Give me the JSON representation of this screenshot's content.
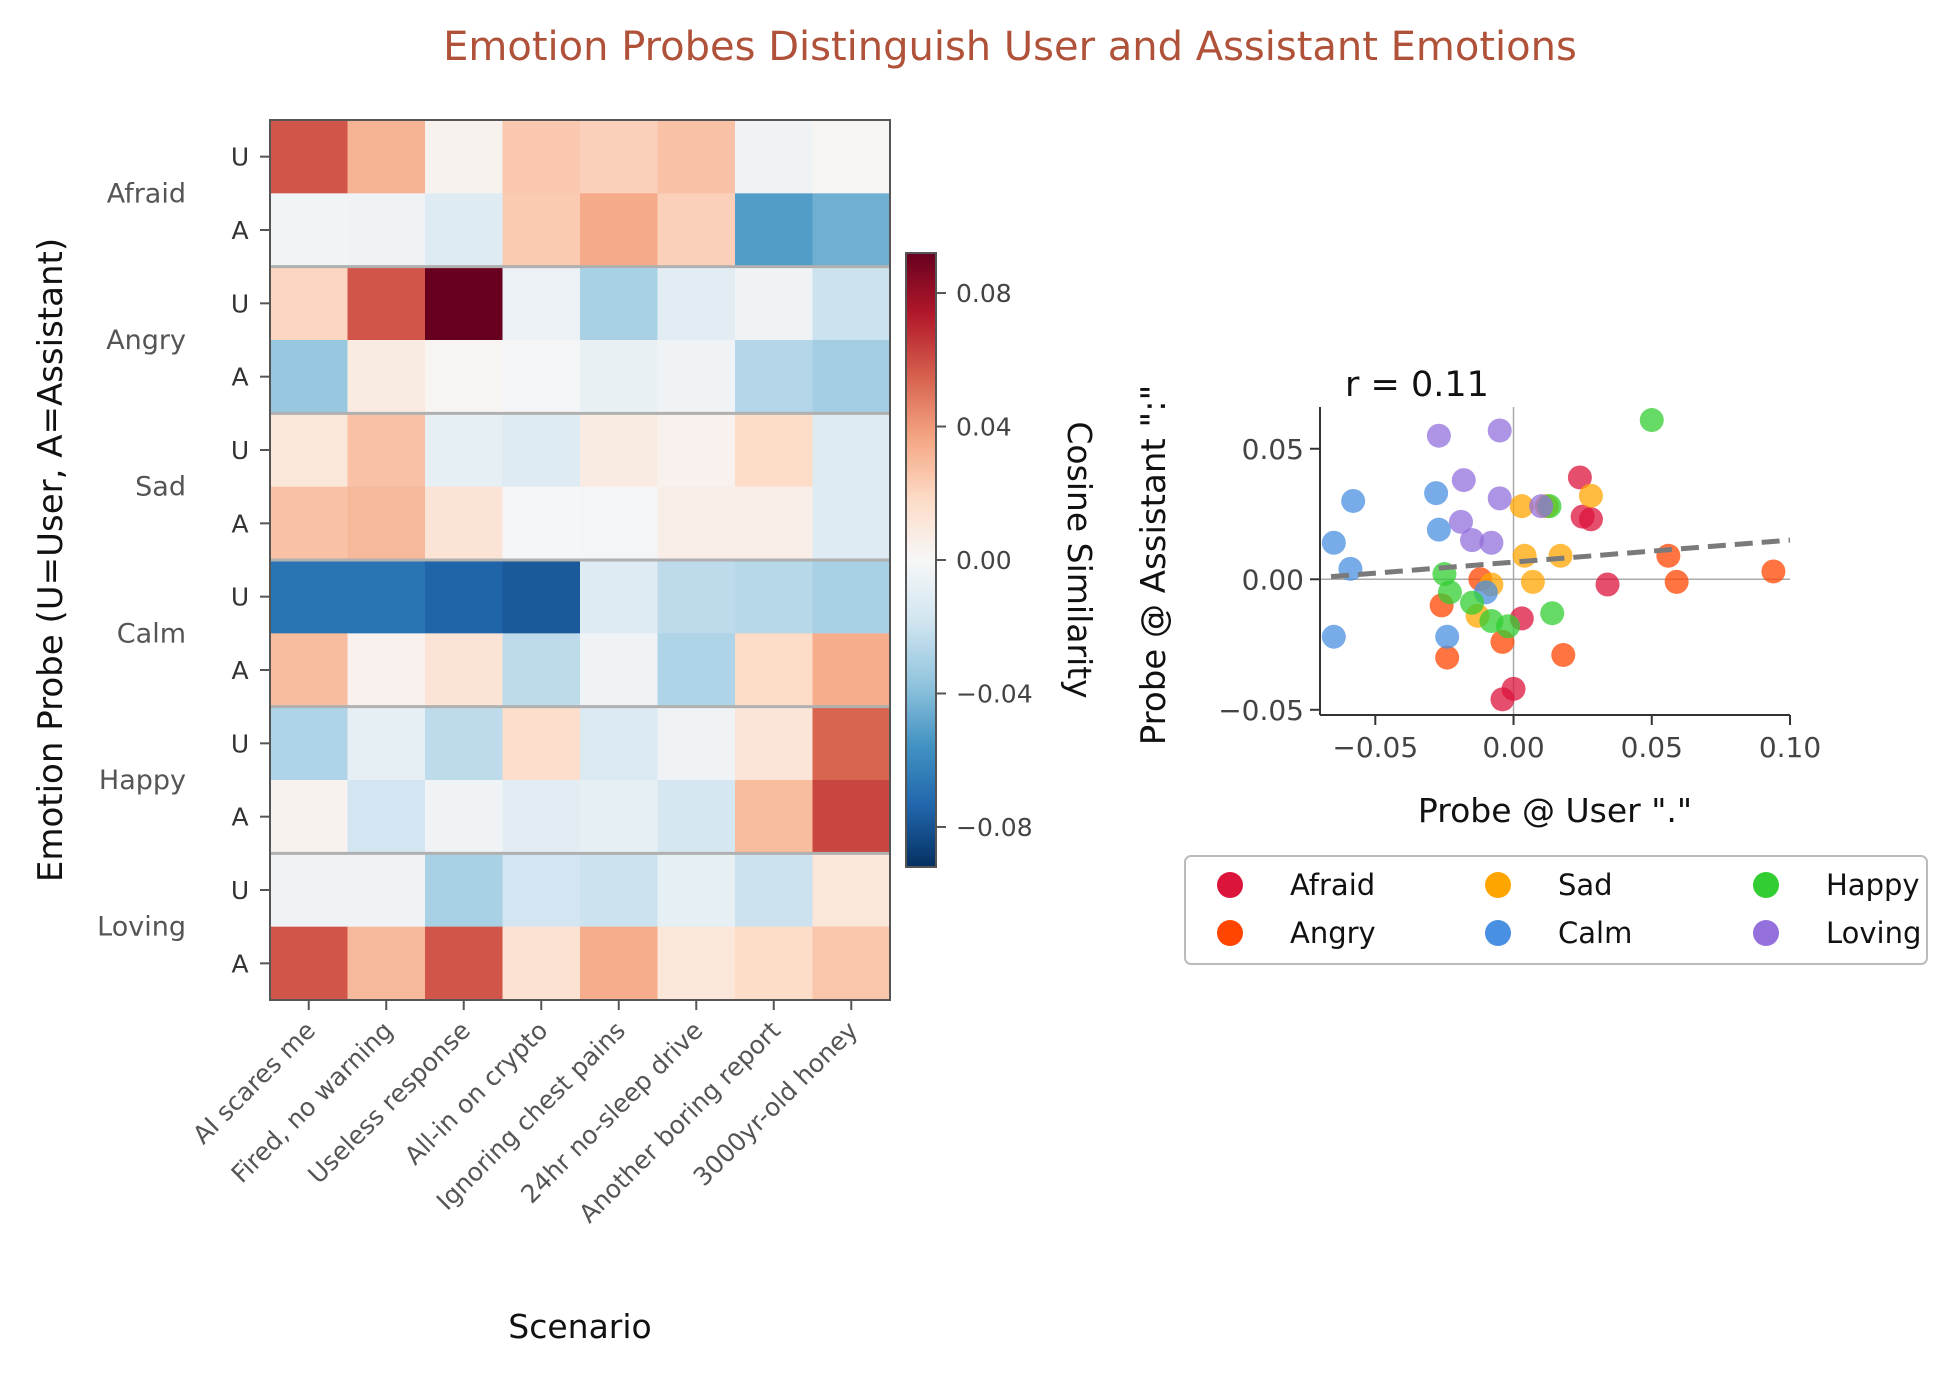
{
  "title": "Emotion Probes Distinguish User and Assistant Emotions",
  "chart_data": [
    {
      "type": "heatmap",
      "xlabel": "Scenario",
      "ylabel": "Emotion Probe (U=User, A=Assistant)",
      "categories": [
        "AI scares me",
        "Fired, no warning",
        "Useless response",
        "All-in on crypto",
        "Ignoring chest pains",
        "24hr no-sleep drive",
        "Another boring report",
        "3000yr-old honey"
      ],
      "groups": [
        "Afraid",
        "Angry",
        "Sad",
        "Calm",
        "Happy",
        "Loving"
      ],
      "row_labels": [
        "U",
        "A"
      ],
      "values": [
        [
          0.058,
          0.032,
          0.003,
          0.025,
          0.022,
          0.027,
          -0.004,
          0.001
        ],
        [
          -0.003,
          -0.004,
          -0.012,
          0.024,
          0.035,
          0.022,
          -0.052,
          -0.045
        ],
        [
          0.02,
          0.058,
          0.092,
          -0.006,
          -0.03,
          -0.01,
          -0.004,
          -0.02
        ],
        [
          -0.035,
          0.008,
          0.002,
          -0.002,
          -0.007,
          -0.004,
          -0.027,
          -0.032
        ],
        [
          0.011,
          0.027,
          -0.008,
          -0.012,
          0.008,
          0.004,
          0.018,
          -0.012
        ],
        [
          0.027,
          0.03,
          0.013,
          -0.001,
          -0.002,
          0.006,
          0.006,
          -0.012
        ],
        [
          -0.068,
          -0.068,
          -0.074,
          -0.078,
          -0.012,
          -0.024,
          -0.026,
          -0.03
        ],
        [
          0.029,
          0.004,
          0.013,
          -0.024,
          -0.004,
          -0.028,
          0.018,
          0.034
        ],
        [
          -0.028,
          -0.008,
          -0.024,
          0.017,
          -0.014,
          -0.004,
          0.012,
          0.054
        ],
        [
          0.003,
          -0.018,
          -0.004,
          -0.01,
          -0.008,
          -0.016,
          0.029,
          0.062
        ],
        [
          -0.004,
          -0.004,
          -0.03,
          -0.018,
          -0.02,
          -0.008,
          -0.02,
          0.011
        ],
        [
          0.058,
          0.03,
          0.058,
          0.014,
          0.034,
          0.011,
          0.018,
          0.026
        ]
      ],
      "colorbar": {
        "label": "Cosine Similarity",
        "range": [
          -0.092,
          0.092
        ],
        "ticks": [
          "0.08",
          "0.04",
          "0.00",
          "−0.04",
          "−0.08"
        ],
        "tick_values": [
          0.08,
          0.04,
          0.0,
          -0.04,
          -0.08
        ],
        "colormap": "RdBu_r"
      }
    },
    {
      "type": "scatter",
      "xlabel": "Probe @ User \".\"",
      "ylabel": "Probe @ Assistant \":\"",
      "annotation": "r = 0.11",
      "xlim": [
        -0.07,
        0.1
      ],
      "ylim": [
        -0.052,
        0.066
      ],
      "x_ticks": [
        "−0.05",
        "0.00",
        "0.05",
        "0.10"
      ],
      "x_tick_values": [
        -0.05,
        0.0,
        0.05,
        0.1
      ],
      "y_ticks": [
        "0.05",
        "0.00",
        "−0.05"
      ],
      "y_tick_values": [
        0.05,
        0.0,
        -0.05
      ],
      "trend_line": {
        "x": [
          -0.066,
          0.1
        ],
        "y": [
          0.001,
          0.015
        ]
      },
      "legend_position": "below",
      "series": [
        {
          "name": "Afraid",
          "color": "#dc143c",
          "points": [
            [
              0.024,
              0.039
            ],
            [
              0.025,
              0.024
            ],
            [
              0.028,
              0.023
            ],
            [
              0.034,
              -0.002
            ],
            [
              0.003,
              -0.015
            ],
            [
              0.0,
              -0.042
            ],
            [
              -0.004,
              -0.046
            ]
          ]
        },
        {
          "name": "Angry",
          "color": "#ff4500",
          "points": [
            [
              0.094,
              0.003
            ],
            [
              0.056,
              0.009
            ],
            [
              0.059,
              -0.001
            ],
            [
              0.018,
              -0.029
            ],
            [
              -0.004,
              -0.024
            ],
            [
              -0.024,
              -0.03
            ],
            [
              -0.026,
              -0.01
            ],
            [
              -0.012,
              0.0
            ]
          ]
        },
        {
          "name": "Sad",
          "color": "#ffa500",
          "points": [
            [
              0.028,
              0.032
            ],
            [
              0.003,
              0.028
            ],
            [
              0.012,
              0.028
            ],
            [
              0.004,
              0.009
            ],
            [
              0.017,
              0.009
            ],
            [
              0.007,
              -0.001
            ],
            [
              -0.013,
              -0.014
            ],
            [
              -0.008,
              -0.002
            ]
          ]
        },
        {
          "name": "Calm",
          "color": "#4a90e2",
          "points": [
            [
              -0.058,
              0.03
            ],
            [
              -0.065,
              0.014
            ],
            [
              -0.059,
              0.004
            ],
            [
              -0.028,
              0.033
            ],
            [
              -0.027,
              0.019
            ],
            [
              -0.065,
              -0.022
            ],
            [
              -0.024,
              -0.022
            ],
            [
              -0.01,
              -0.005
            ]
          ]
        },
        {
          "name": "Happy",
          "color": "#32cd32",
          "points": [
            [
              0.05,
              0.061
            ],
            [
              0.013,
              0.028
            ],
            [
              0.014,
              -0.013
            ],
            [
              -0.002,
              -0.018
            ],
            [
              -0.008,
              -0.016
            ],
            [
              -0.015,
              -0.009
            ],
            [
              -0.025,
              0.002
            ],
            [
              -0.023,
              -0.005
            ]
          ]
        },
        {
          "name": "Loving",
          "color": "#9370db",
          "points": [
            [
              -0.027,
              0.055
            ],
            [
              -0.005,
              0.057
            ],
            [
              -0.018,
              0.038
            ],
            [
              -0.005,
              0.031
            ],
            [
              -0.019,
              0.022
            ],
            [
              -0.015,
              0.015
            ],
            [
              -0.008,
              0.014
            ],
            [
              0.01,
              0.028
            ]
          ]
        }
      ]
    }
  ]
}
